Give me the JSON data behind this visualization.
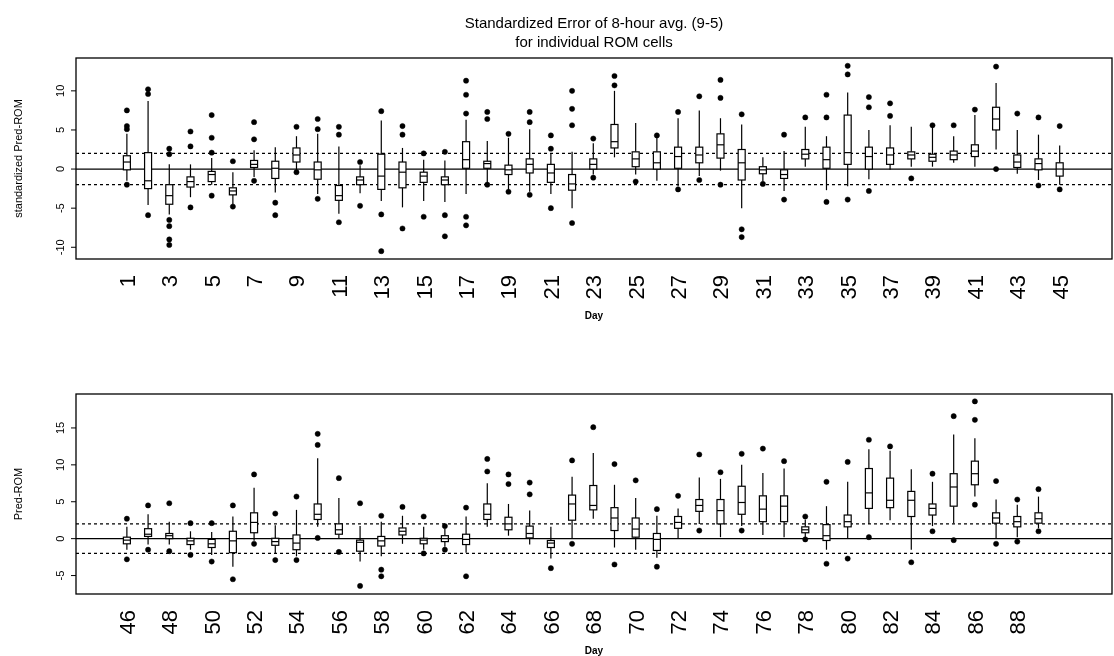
{
  "chart_data": [
    {
      "type": "box",
      "title": "Standardized Error of 8-hour avg. (9-5)",
      "subtitle": "for individual ROM cells",
      "xlabel": "Day",
      "ylabel": "standardized Pred-ROM",
      "categories": [
        "1",
        null,
        "3",
        null,
        "5",
        null,
        "7",
        null,
        "9",
        null,
        "11",
        null,
        "13",
        null,
        "15",
        null,
        "17",
        null,
        "19",
        null,
        "21",
        null,
        "23",
        null,
        "25",
        null,
        "27",
        null,
        "29",
        null,
        "31",
        null,
        "33",
        null,
        "35",
        null,
        "37",
        null,
        "39",
        null,
        "41",
        null,
        "43",
        null,
        "45"
      ],
      "ylim": [
        -11.5,
        14.2
      ],
      "yticks": [
        -10,
        -5,
        0,
        5,
        10
      ],
      "ref_lines": [
        {
          "axis": "y",
          "value": 0,
          "line_style": "solid"
        },
        {
          "axis": "y",
          "value": 2,
          "line_style": "dotted"
        },
        {
          "axis": "y",
          "value": -2,
          "line_style": "dotted"
        }
      ],
      "boxes": [
        {
          "low": -1.5,
          "q1": -0.1,
          "median": 0.9,
          "q3": 1.7,
          "high": 4.5,
          "outliers": [
            7.5,
            5.5,
            5.1,
            -2.0
          ]
        },
        {
          "low": -4.6,
          "q1": -2.5,
          "median": -1.5,
          "q3": 2.1,
          "high": 8.7,
          "outliers": [
            10.2,
            9.6,
            -5.9
          ]
        },
        {
          "low": -5.8,
          "q1": -4.5,
          "median": -3.4,
          "q3": -2.0,
          "high": 0.6,
          "outliers": [
            2.6,
            1.9,
            -6.5,
            -7.3,
            -9.0,
            -9.7
          ]
        },
        {
          "low": -3.6,
          "q1": -2.3,
          "median": -1.6,
          "q3": -1.0,
          "high": 0.6,
          "outliers": [
            4.8,
            2.9,
            -4.9
          ]
        },
        {
          "low": -2.0,
          "q1": -1.6,
          "median": -0.7,
          "q3": -0.3,
          "high": 1.4,
          "outliers": [
            6.9,
            4.0,
            2.1,
            -3.4
          ]
        },
        {
          "low": -4.5,
          "q1": -3.3,
          "median": -2.8,
          "q3": -2.4,
          "high": -0.4,
          "outliers": [
            1.0,
            -4.8
          ]
        },
        {
          "low": -1.0,
          "q1": 0.2,
          "median": 0.6,
          "q3": 1.1,
          "high": 2.4,
          "outliers": [
            6.0,
            3.8,
            -1.5
          ]
        },
        {
          "low": -3.0,
          "q1": -1.2,
          "median": 0.1,
          "q3": 1.0,
          "high": 2.8,
          "outliers": [
            -4.3,
            -5.9
          ]
        },
        {
          "low": -0.2,
          "q1": 0.9,
          "median": 1.8,
          "q3": 2.7,
          "high": 4.2,
          "outliers": [
            5.4,
            -0.4
          ]
        },
        {
          "low": -3.2,
          "q1": -1.3,
          "median": -0.1,
          "q3": 0.9,
          "high": 4.5,
          "outliers": [
            6.4,
            5.1,
            -3.8
          ]
        },
        {
          "low": -5.7,
          "q1": -4.0,
          "median": -3.4,
          "q3": -2.1,
          "high": 2.9,
          "outliers": [
            5.4,
            4.4,
            -6.8
          ]
        },
        {
          "low": -3.1,
          "q1": -2.0,
          "median": -1.4,
          "q3": -1.0,
          "high": 0.5,
          "outliers": [
            0.9,
            -4.7
          ]
        },
        {
          "low": -4.1,
          "q1": -2.6,
          "median": -0.9,
          "q3": 1.9,
          "high": 6.2,
          "outliers": [
            7.4,
            -5.8,
            -10.5
          ]
        },
        {
          "low": -4.9,
          "q1": -2.4,
          "median": -0.4,
          "q3": 0.9,
          "high": 2.7,
          "outliers": [
            5.5,
            4.4,
            -7.6
          ]
        },
        {
          "low": -4.1,
          "q1": -1.7,
          "median": -0.9,
          "q3": -0.4,
          "high": 1.2,
          "outliers": [
            2.0,
            -6.1
          ]
        },
        {
          "low": -4.2,
          "q1": -2.0,
          "median": -1.4,
          "q3": -1.0,
          "high": 1.1,
          "outliers": [
            2.2,
            -5.9,
            -8.6
          ]
        },
        {
          "low": -3.2,
          "q1": 0.1,
          "median": 1.2,
          "q3": 3.5,
          "high": 6.3,
          "outliers": [
            11.3,
            9.5,
            7.1,
            -6.1,
            -7.2
          ]
        },
        {
          "low": -1.8,
          "q1": 0.1,
          "median": 0.7,
          "q3": 1.0,
          "high": 3.6,
          "outliers": [
            7.3,
            6.4,
            -2.0
          ]
        },
        {
          "low": -2.7,
          "q1": -0.7,
          "median": -0.1,
          "q3": 0.5,
          "high": 4.0,
          "outliers": [
            4.5,
            -2.9
          ]
        },
        {
          "low": -2.9,
          "q1": -0.5,
          "median": 0.6,
          "q3": 1.3,
          "high": 5.1,
          "outliers": [
            7.3,
            6.0,
            -3.3
          ]
        },
        {
          "low": -3.2,
          "q1": -1.7,
          "median": -0.5,
          "q3": 0.6,
          "high": 2.0,
          "outliers": [
            4.3,
            2.6,
            -5.0
          ]
        },
        {
          "low": -5.0,
          "q1": -2.7,
          "median": -1.9,
          "q3": -0.7,
          "high": 2.2,
          "outliers": [
            10.0,
            7.7,
            5.6,
            -6.9
          ]
        },
        {
          "low": -0.7,
          "q1": 0.0,
          "median": 0.6,
          "q3": 1.3,
          "high": 3.3,
          "outliers": [
            3.9,
            -1.1
          ]
        },
        {
          "low": 1.5,
          "q1": 2.7,
          "median": 3.5,
          "q3": 5.7,
          "high": 10.0,
          "outliers": [
            11.9,
            10.7
          ]
        },
        {
          "low": -0.7,
          "q1": 0.3,
          "median": 1.3,
          "q3": 2.2,
          "high": 5.9,
          "outliers": [
            -1.6
          ]
        },
        {
          "low": -1.5,
          "q1": 0.0,
          "median": 0.8,
          "q3": 2.2,
          "high": 4.2,
          "outliers": [
            4.3
          ]
        },
        {
          "low": -2.2,
          "q1": 0.1,
          "median": 1.6,
          "q3": 2.8,
          "high": 6.5,
          "outliers": [
            7.3,
            -2.6
          ]
        },
        {
          "low": -0.9,
          "q1": 0.8,
          "median": 1.8,
          "q3": 2.8,
          "high": 7.5,
          "outliers": [
            9.3,
            -1.4
          ]
        },
        {
          "low": -0.2,
          "q1": 1.4,
          "median": 3.1,
          "q3": 4.5,
          "high": 6.5,
          "outliers": [
            11.4,
            9.1,
            -2.0
          ]
        },
        {
          "low": -5.0,
          "q1": -1.4,
          "median": 0.8,
          "q3": 2.5,
          "high": 5.7,
          "outliers": [
            7.0,
            -7.7,
            -8.7
          ]
        },
        {
          "low": -1.6,
          "q1": -0.6,
          "median": -0.1,
          "q3": 0.3,
          "high": 1.5,
          "outliers": [
            -1.9
          ]
        },
        {
          "low": -2.8,
          "q1": -1.2,
          "median": -0.7,
          "q3": -0.1,
          "high": 2.3,
          "outliers": [
            4.4,
            -3.9
          ]
        },
        {
          "low": 0.3,
          "q1": 1.3,
          "median": 1.9,
          "q3": 2.5,
          "high": 5.4,
          "outliers": [
            6.6
          ]
        },
        {
          "low": -2.7,
          "q1": 0.1,
          "median": 1.2,
          "q3": 2.8,
          "high": 4.2,
          "outliers": [
            9.5,
            6.6,
            -4.2
          ]
        },
        {
          "low": -2.2,
          "q1": 0.6,
          "median": 2.1,
          "q3": 6.9,
          "high": 9.8,
          "outliers": [
            13.2,
            12.1,
            -3.9
          ]
        },
        {
          "low": -1.3,
          "q1": 0.0,
          "median": 1.6,
          "q3": 2.8,
          "high": 5.0,
          "outliers": [
            9.2,
            7.9,
            -2.8
          ]
        },
        {
          "low": -0.1,
          "q1": 0.6,
          "median": 1.8,
          "q3": 2.7,
          "high": 5.6,
          "outliers": [
            8.4,
            6.8
          ]
        },
        {
          "low": 0.3,
          "q1": 1.3,
          "median": 1.8,
          "q3": 2.2,
          "high": 5.4,
          "outliers": [
            -1.2
          ]
        },
        {
          "low": 0.3,
          "q1": 1.0,
          "median": 1.5,
          "q3": 1.9,
          "high": 5.8,
          "outliers": [
            5.6
          ]
        },
        {
          "low": 0.8,
          "q1": 1.2,
          "median": 1.8,
          "q3": 2.3,
          "high": 4.2,
          "outliers": [
            5.6
          ]
        },
        {
          "low": 0.3,
          "q1": 1.6,
          "median": 2.3,
          "q3": 3.1,
          "high": 6.9,
          "outliers": [
            7.6
          ]
        },
        {
          "low": 2.5,
          "q1": 5.0,
          "median": 6.4,
          "q3": 7.9,
          "high": 11.0,
          "outliers": [
            13.1,
            0.0
          ]
        },
        {
          "low": -0.6,
          "q1": 0.2,
          "median": 0.9,
          "q3": 1.8,
          "high": 5.0,
          "outliers": [
            7.1
          ]
        },
        {
          "low": -1.4,
          "q1": -0.1,
          "median": 0.7,
          "q3": 1.3,
          "high": 4.4,
          "outliers": [
            6.6,
            -2.1
          ]
        },
        {
          "low": -2.0,
          "q1": -0.9,
          "median": 0.0,
          "q3": 0.8,
          "high": 3.0,
          "outliers": [
            5.5,
            -2.6
          ]
        }
      ]
    },
    {
      "type": "box",
      "xlabel": "Day",
      "ylabel": "Pred-ROM",
      "categories": [
        "46",
        null,
        "48",
        null,
        "50",
        null,
        "52",
        null,
        "54",
        null,
        "56",
        null,
        "58",
        null,
        "60",
        null,
        "62",
        null,
        "64",
        null,
        "66",
        null,
        "68",
        null,
        "70",
        null,
        "72",
        null,
        "74",
        null,
        "76",
        null,
        "78",
        null,
        "80",
        null,
        "82",
        null,
        "84",
        null,
        "86",
        null,
        "88",
        null
      ],
      "ylim": [
        -7.5,
        19.6
      ],
      "yticks": [
        -5,
        0,
        5,
        10,
        15
      ],
      "ref_lines": [
        {
          "axis": "y",
          "value": 0,
          "line_style": "solid"
        },
        {
          "axis": "y",
          "value": 2,
          "line_style": "dotted"
        },
        {
          "axis": "y",
          "value": -2,
          "line_style": "dotted"
        }
      ],
      "boxes": [
        {
          "low": -1.5,
          "q1": -0.7,
          "median": -0.2,
          "q3": 0.2,
          "high": 1.6,
          "outliers": [
            2.7,
            -2.8
          ]
        },
        {
          "low": -0.8,
          "q1": 0.3,
          "median": 0.6,
          "q3": 1.35,
          "high": 3.3,
          "outliers": [
            4.5,
            -1.5
          ]
        },
        {
          "low": -0.8,
          "q1": 0.0,
          "median": 0.4,
          "q3": 0.7,
          "high": 2.3,
          "outliers": [
            4.8,
            -1.7
          ]
        },
        {
          "low": -1.5,
          "q1": -0.8,
          "median": -0.3,
          "q3": 0.05,
          "high": 1.0,
          "outliers": [
            2.1,
            -2.2
          ]
        },
        {
          "low": -2.2,
          "q1": -1.2,
          "median": -0.7,
          "q3": -0.1,
          "high": 0.9,
          "outliers": [
            2.1,
            -3.1
          ]
        },
        {
          "low": -3.8,
          "q1": -1.9,
          "median": -0.3,
          "q3": 1.0,
          "high": 3.0,
          "outliers": [
            4.5,
            -5.5
          ]
        },
        {
          "low": -0.3,
          "q1": 0.8,
          "median": 2.2,
          "q3": 3.5,
          "high": 6.9,
          "outliers": [
            8.7,
            -0.7
          ]
        },
        {
          "low": -2.0,
          "q1": -0.9,
          "median": -0.4,
          "q3": 0.05,
          "high": 1.8,
          "outliers": [
            3.4,
            -2.9
          ]
        },
        {
          "low": -2.4,
          "q1": -1.5,
          "median": -0.6,
          "q3": 0.5,
          "high": 3.9,
          "outliers": [
            5.7,
            -2.9
          ]
        },
        {
          "low": 1.6,
          "q1": 2.6,
          "median": 3.3,
          "q3": 4.7,
          "high": 10.9,
          "outliers": [
            14.2,
            12.7,
            0.1
          ]
        },
        {
          "low": 0.1,
          "q1": 0.6,
          "median": 1.2,
          "q3": 2.0,
          "high": 5.5,
          "outliers": [
            8.2,
            -1.8
          ]
        },
        {
          "low": -3.1,
          "q1": -1.7,
          "median": -0.5,
          "q3": -0.2,
          "high": 1.7,
          "outliers": [
            4.8,
            -6.4
          ]
        },
        {
          "low": -2.4,
          "q1": -1.0,
          "median": -0.3,
          "q3": 0.3,
          "high": 2.3,
          "outliers": [
            3.1,
            -4.2,
            -5.1
          ]
        },
        {
          "low": -0.7,
          "q1": 0.5,
          "median": 1.0,
          "q3": 1.45,
          "high": 3.1,
          "outliers": [
            4.3
          ]
        },
        {
          "low": -1.5,
          "q1": -0.7,
          "median": -0.2,
          "q3": 0.05,
          "high": 1.6,
          "outliers": [
            3.0,
            -2.0
          ]
        },
        {
          "low": -1.1,
          "q1": -0.4,
          "median": 0.0,
          "q3": 0.4,
          "high": 1.35,
          "outliers": [
            1.7,
            -1.5
          ]
        },
        {
          "low": -1.9,
          "q1": -0.8,
          "median": -0.1,
          "q3": 0.6,
          "high": 3.0,
          "outliers": [
            4.2,
            -5.1
          ]
        },
        {
          "low": 1.6,
          "q1": 2.6,
          "median": 3.3,
          "q3": 4.7,
          "high": 7.5,
          "outliers": [
            10.8,
            9.1
          ]
        },
        {
          "low": 0.4,
          "q1": 1.2,
          "median": 2.0,
          "q3": 2.9,
          "high": 4.7,
          "outliers": [
            8.7,
            7.4
          ]
        },
        {
          "low": -0.8,
          "q1": 0.1,
          "median": 0.7,
          "q3": 1.7,
          "high": 3.8,
          "outliers": [
            7.6,
            6.0
          ]
        },
        {
          "low": -2.7,
          "q1": -1.2,
          "median": -0.6,
          "q3": -0.25,
          "high": 1.6,
          "outliers": [
            -4.0
          ]
        },
        {
          "low": 0.0,
          "q1": 2.5,
          "median": 4.7,
          "q3": 5.9,
          "high": 8.4,
          "outliers": [
            10.6,
            -0.7
          ]
        },
        {
          "low": 2.7,
          "q1": 3.9,
          "median": 4.5,
          "q3": 7.2,
          "high": 11.6,
          "outliers": [
            15.1
          ]
        },
        {
          "low": -1.2,
          "q1": 1.1,
          "median": 2.8,
          "q3": 4.2,
          "high": 7.3,
          "outliers": [
            10.1,
            -3.5
          ]
        },
        {
          "low": -1.5,
          "q1": 0.2,
          "median": 1.3,
          "q3": 2.8,
          "high": 5.5,
          "outliers": [
            7.9
          ]
        },
        {
          "low": -2.6,
          "q1": -1.6,
          "median": -0.1,
          "q3": 0.7,
          "high": 3.1,
          "outliers": [
            4.0,
            -3.8
          ]
        },
        {
          "low": 0.0,
          "q1": 1.4,
          "median": 2.2,
          "q3": 3.0,
          "high": 4.1,
          "outliers": [
            5.8
          ]
        },
        {
          "low": 2.0,
          "q1": 3.7,
          "median": 4.5,
          "q3": 5.3,
          "high": 8.3,
          "outliers": [
            11.4,
            1.1
          ]
        },
        {
          "low": 0.2,
          "q1": 2.0,
          "median": 3.8,
          "q3": 5.3,
          "high": 8.1,
          "outliers": [
            9.0
          ]
        },
        {
          "low": 1.7,
          "q1": 3.3,
          "median": 4.9,
          "q3": 7.1,
          "high": 10.0,
          "outliers": [
            11.5,
            1.1
          ]
        },
        {
          "low": 0.5,
          "q1": 2.3,
          "median": 4.0,
          "q3": 5.8,
          "high": 8.9,
          "outliers": [
            12.2
          ]
        },
        {
          "low": 0.2,
          "q1": 2.3,
          "median": 4.4,
          "q3": 5.8,
          "high": 9.5,
          "outliers": [
            10.5
          ]
        },
        {
          "low": 0.2,
          "q1": 0.8,
          "median": 1.2,
          "q3": 1.6,
          "high": 2.6,
          "outliers": [
            3.0,
            -0.1
          ]
        },
        {
          "low": -1.5,
          "q1": -0.25,
          "median": 0.4,
          "q3": 1.9,
          "high": 4.4,
          "outliers": [
            7.7,
            -3.4
          ]
        },
        {
          "low": 0.0,
          "q1": 1.6,
          "median": 2.3,
          "q3": 3.2,
          "high": 7.7,
          "outliers": [
            10.4,
            -2.7
          ]
        },
        {
          "low": 2.0,
          "q1": 4.1,
          "median": 6.2,
          "q3": 9.5,
          "high": 12.1,
          "outliers": [
            13.4,
            0.2
          ]
        },
        {
          "low": 2.5,
          "q1": 4.2,
          "median": 5.2,
          "q3": 8.2,
          "high": 11.9,
          "outliers": [
            12.5
          ]
        },
        {
          "low": -1.5,
          "q1": 3.0,
          "median": 5.2,
          "q3": 6.4,
          "high": 9.4,
          "outliers": [
            -3.2
          ]
        },
        {
          "low": 1.7,
          "q1": 3.2,
          "median": 4.1,
          "q3": 4.7,
          "high": 7.7,
          "outliers": [
            8.8,
            1.0
          ]
        },
        {
          "low": 2.1,
          "q1": 4.4,
          "median": 7.0,
          "q3": 8.8,
          "high": 14.1,
          "outliers": [
            16.6,
            -0.2
          ]
        },
        {
          "low": 5.7,
          "q1": 7.3,
          "median": 8.8,
          "q3": 10.5,
          "high": 13.6,
          "outliers": [
            18.6,
            16.1,
            4.6
          ]
        },
        {
          "low": 0.0,
          "q1": 2.1,
          "median": 2.8,
          "q3": 3.5,
          "high": 5.3,
          "outliers": [
            7.8,
            -0.7
          ]
        },
        {
          "low": 0.2,
          "q1": 1.6,
          "median": 2.3,
          "q3": 3.0,
          "high": 4.6,
          "outliers": [
            5.3,
            -0.4
          ]
        },
        {
          "low": 1.4,
          "q1": 2.1,
          "median": 2.7,
          "q3": 3.5,
          "high": 5.7,
          "outliers": [
            6.7,
            1.0
          ]
        }
      ]
    }
  ]
}
